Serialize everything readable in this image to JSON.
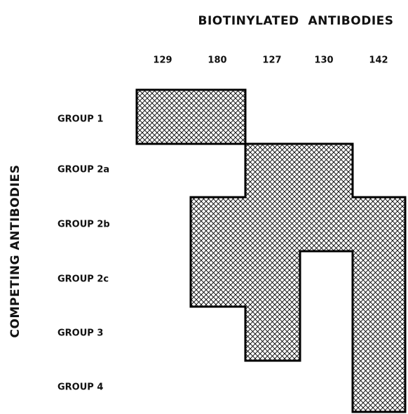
{
  "header": {
    "title": "BIOTINYLATED  ANTIBODIES"
  },
  "side_title": "COMPETING ANTIBODIES",
  "columns": [
    "129",
    "180",
    "127",
    "130",
    "142"
  ],
  "rows": [
    "GROUP 1",
    "GROUP 2a",
    "GROUP 2b",
    "GROUP 2c",
    "GROUP 3",
    "GROUP 4"
  ]
}
